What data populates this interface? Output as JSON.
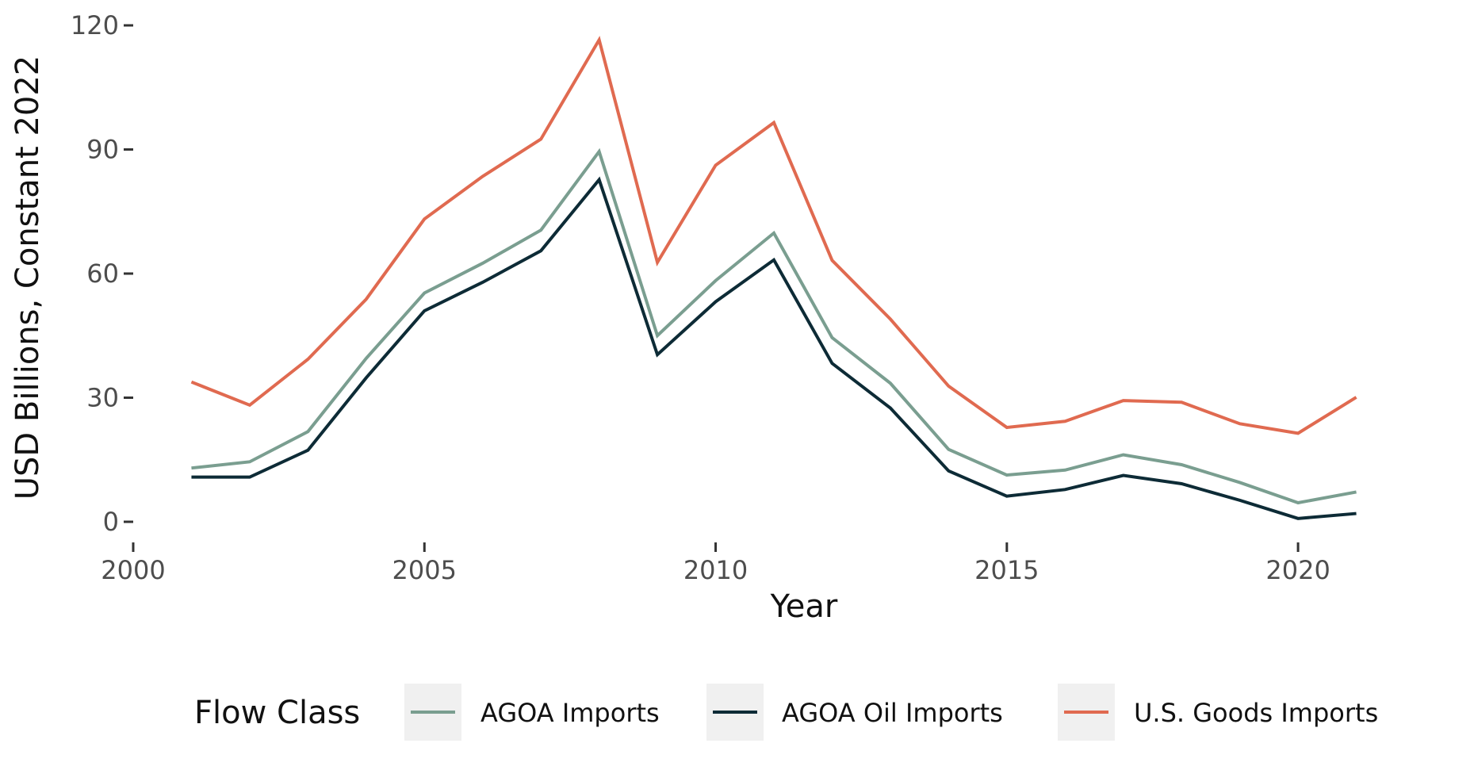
{
  "chart_data": {
    "type": "line",
    "xlabel": "Year",
    "ylabel": "USD Billions, Constant 2022",
    "xlim": [
      2000,
      2022
    ],
    "ylim": [
      0,
      120
    ],
    "x_ticks": [
      2000,
      2005,
      2010,
      2015,
      2020
    ],
    "y_ticks": [
      0,
      30,
      60,
      90,
      120
    ],
    "grid": false,
    "legend": {
      "title": "Flow Class",
      "position": "bottom"
    },
    "x": [
      2001,
      2002,
      2003,
      2004,
      2005,
      2006,
      2007,
      2008,
      2009,
      2010,
      2011,
      2012,
      2013,
      2014,
      2015,
      2016,
      2017,
      2018,
      2019,
      2020,
      2021
    ],
    "series": [
      {
        "name": "AGOA Imports",
        "color": "#7a9e90",
        "values": [
          13.0,
          14.5,
          21.8,
          39.5,
          55.3,
          62.5,
          70.5,
          89.5,
          45.0,
          58.3,
          69.8,
          44.5,
          33.5,
          17.5,
          11.3,
          12.5,
          16.2,
          13.8,
          9.5,
          4.6,
          7.2
        ]
      },
      {
        "name": "AGOA Oil Imports",
        "color": "#0d2b36",
        "values": [
          10.8,
          10.8,
          17.3,
          34.8,
          51.0,
          57.9,
          65.5,
          82.7,
          40.4,
          53.2,
          63.3,
          38.3,
          27.5,
          12.3,
          6.2,
          7.8,
          11.2,
          9.2,
          5.2,
          0.8,
          2.0
        ]
      },
      {
        "name": "U.S. Goods Imports",
        "color": "#e06a50",
        "values": [
          33.8,
          28.2,
          39.3,
          53.8,
          73.2,
          83.5,
          92.5,
          116.5,
          62.7,
          86.2,
          96.5,
          63.2,
          49.0,
          32.8,
          22.8,
          24.3,
          29.3,
          28.9,
          23.7,
          21.4,
          30.1
        ]
      }
    ]
  },
  "legend_key_bg": "#f0f0f0"
}
